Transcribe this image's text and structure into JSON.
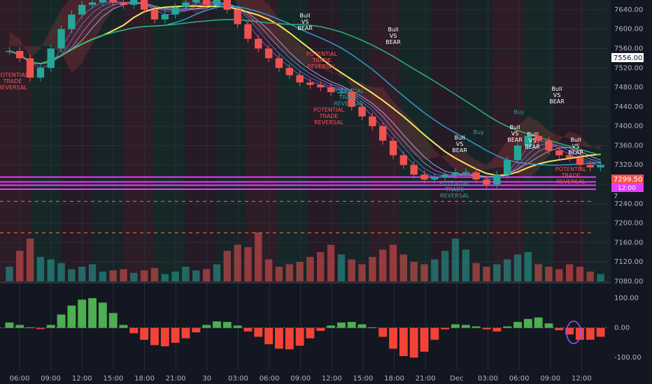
{
  "chart_data": [
    {
      "type": "candlestick",
      "y_ticks": [
        "7640.00",
        "7600.00",
        "7560.00",
        "7520.00",
        "7480.00",
        "7440.00",
        "7400.00",
        "7360.00",
        "7320.00",
        "7280.00",
        "7240.00",
        "7200.00",
        "7160.00",
        "7120.00",
        "7080.00"
      ],
      "ylim": [
        7080,
        7660
      ],
      "x_ticks": [
        "06:00",
        "09:00",
        "12:00",
        "15:00",
        "18:00",
        "21:00",
        "30",
        "03:00",
        "06:00",
        "09:00",
        "12:00",
        "15:00",
        "18:00",
        "21:00",
        "Dec",
        "03:00",
        "06:00",
        "09:00",
        "12:00"
      ],
      "last_price": "7556.00",
      "current_price": "7299.50",
      "countdown": "12:00",
      "partial_label": "7",
      "close_prices": [
        7555,
        7540,
        7500,
        7520,
        7560,
        7600,
        7630,
        7650,
        7655,
        7660,
        7655,
        7650,
        7660,
        7640,
        7620,
        7630,
        7645,
        7655,
        7660,
        7650,
        7660,
        7640,
        7610,
        7580,
        7560,
        7540,
        7520,
        7505,
        7490,
        7485,
        7480,
        7470,
        7470,
        7440,
        7420,
        7400,
        7370,
        7340,
        7320,
        7300,
        7290,
        7295,
        7300,
        7305,
        7305,
        7290,
        7280,
        7300,
        7330,
        7360,
        7380,
        7370,
        7350,
        7340,
        7335,
        7320,
        7315,
        7320
      ],
      "volume": [
        12,
        25,
        35,
        20,
        18,
        15,
        10,
        12,
        14,
        8,
        9,
        10,
        7,
        9,
        11,
        6,
        8,
        12,
        9,
        10,
        14,
        25,
        30,
        28,
        40,
        18,
        12,
        14,
        16,
        20,
        24,
        30,
        22,
        18,
        14,
        20,
        26,
        30,
        22,
        16,
        14,
        18,
        25,
        35,
        26,
        15,
        12,
        14,
        18,
        22,
        24,
        14,
        12,
        10,
        14,
        12,
        8,
        6
      ],
      "horizontal_levels": [
        7295,
        7285,
        7278,
        7270
      ],
      "dashed_levels": [
        7245,
        7180
      ],
      "annotations": [
        {
          "text": [
            "POTENTIAL",
            "TRADE",
            "REVERSAL"
          ],
          "color": "#ff5252"
        },
        {
          "text": [
            "Bull",
            "VS",
            "BEAR"
          ],
          "color": "#ffffff"
        },
        {
          "text": [
            "POTENTIAL",
            "TRADE",
            "REVERSAL"
          ],
          "color": "#ff5252"
        },
        {
          "text": [
            "POTENTIAL",
            "TRADE",
            "REVERSAL"
          ],
          "color": "#26a69a"
        },
        {
          "text": [
            "Bull",
            "VS",
            "BEAR"
          ],
          "color": "#ffffff"
        },
        {
          "text": [
            "POTENTIAL",
            "TRADE",
            "REVERSAL"
          ],
          "color": "#ff5252"
        },
        {
          "text": [
            "Bull",
            "VS",
            "BEAR"
          ],
          "color": "#ffffff"
        },
        {
          "text": [
            "Buy"
          ],
          "color": "#26a69a"
        },
        {
          "text": [
            "POTENTIAL",
            "TRADE",
            "REVERSAL"
          ],
          "color": "#26a69a"
        },
        {
          "text": [
            "Bull",
            "VS",
            "BEAR"
          ],
          "color": "#ffffff"
        },
        {
          "text": [
            "Buy"
          ],
          "color": "#26a69a"
        },
        {
          "text": [
            "Bull",
            "VS",
            "BEAR"
          ],
          "color": "#ffffff"
        },
        {
          "text": [
            "Bull",
            "VS",
            "BEAR"
          ],
          "color": "#ffffff"
        },
        {
          "text": [
            "Bull",
            "VS",
            "BEAR"
          ],
          "color": "#ffffff"
        },
        {
          "text": [
            "POTENTIAL",
            "TRADE",
            "REVERSAL"
          ],
          "color": "#ff5252"
        }
      ],
      "colors": {
        "up": "#26a69a",
        "down": "#ef5350",
        "ma_yellow": "#f5e663",
        "ma_green": "#2ab673",
        "ma_blue": "#2b9fd0",
        "level": "#e040fb",
        "dashed": "#ff6d3a"
      }
    },
    {
      "type": "histogram",
      "y_ticks": [
        "100.00",
        "0.00",
        "-100.00"
      ],
      "ylim": [
        -130,
        140
      ],
      "values": [
        18,
        10,
        2,
        -4,
        10,
        45,
        75,
        95,
        100,
        85,
        50,
        10,
        -18,
        -40,
        -58,
        -62,
        -50,
        -35,
        -15,
        10,
        22,
        20,
        8,
        -12,
        -30,
        -55,
        -70,
        -72,
        -60,
        -35,
        -10,
        8,
        18,
        20,
        12,
        2,
        -30,
        -70,
        -95,
        -100,
        -80,
        -40,
        -5,
        12,
        10,
        5,
        -5,
        -12,
        5,
        20,
        30,
        35,
        15,
        -8,
        -22,
        -40,
        -40,
        -30
      ],
      "colors": {
        "up": "#4caf50",
        "down": "#f44336"
      }
    }
  ]
}
